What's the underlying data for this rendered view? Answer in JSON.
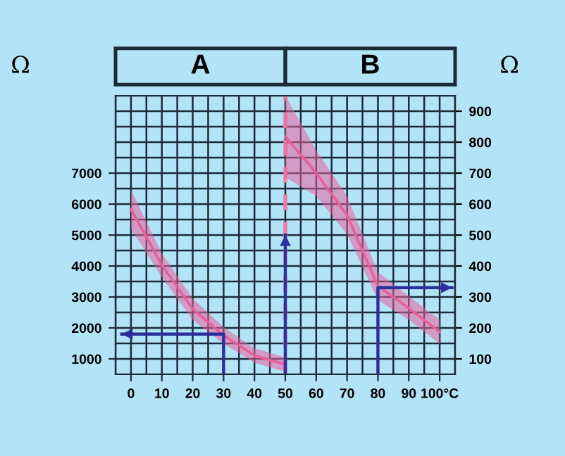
{
  "chart_data": {
    "type": "line",
    "ylabel": "Ω",
    "y2label": "Ω",
    "annotations": [
      "A",
      "B"
    ],
    "xlim": [
      -5,
      105
    ],
    "xticks": [
      0,
      10,
      20,
      30,
      40,
      50,
      60,
      70,
      80,
      90,
      {
        "value": 100,
        "label": "100°C"
      }
    ],
    "ylim": [
      500,
      9500
    ],
    "yticks": [
      1000,
      2000,
      3000,
      4000,
      5000,
      6000,
      7000
    ],
    "y2lim": [
      50,
      950
    ],
    "y2ticks": [
      100,
      200,
      300,
      400,
      500,
      600,
      700,
      800,
      900
    ],
    "grid": true,
    "series": [
      {
        "color": "#e8609a",
        "x": [
          0,
          10,
          20,
          30,
          40,
          50
        ],
        "values": [
          5830,
          4030,
          2610,
          1760,
          1110,
          820
        ],
        "upper": [
          6460,
          4410,
          2950,
          2030,
          1340,
          1050
        ],
        "lower": [
          5200,
          3640,
          2260,
          1490,
          880,
          580
        ]
      },
      {
        "axis": "y2",
        "color": "#e8609a",
        "x": [
          50,
          60,
          70,
          80,
          90,
          100
        ],
        "values": [
          818,
          700,
          564,
          335,
          264,
          187
        ],
        "upper": [
          950,
          774,
          626,
          380,
          303,
          226
        ],
        "lower": [
          687,
          626,
          503,
          290,
          226,
          149
        ]
      },
      {
        "color": "#2b2f9e",
        "x": [
          30,
          30,
          -3
        ],
        "values": [
          500,
          1800,
          1800
        ]
      },
      {
        "color": "#2b2f9e",
        "x": [
          50,
          50
        ],
        "values": [
          500,
          5000
        ]
      },
      {
        "axis": "y2",
        "color": "#2b2f9e",
        "x": [
          80,
          80,
          104
        ],
        "values": [
          50,
          330,
          330
        ]
      }
    ],
    "ref_lines": [
      {
        "axis": "x",
        "value": 50,
        "color": "#f07aa8",
        "line_style": "dashed"
      }
    ]
  }
}
